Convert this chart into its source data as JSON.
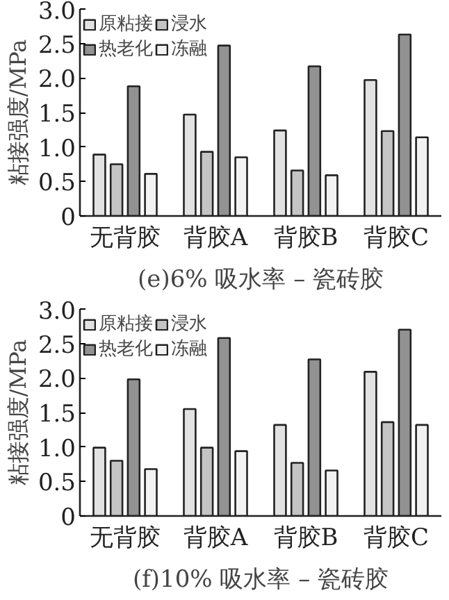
{
  "chart_data": [
    {
      "type": "bar",
      "title": "(e)6% 吸水率 – 瓷砖胶",
      "ylabel": "粘接强度/MPa",
      "categories": [
        "无背胶",
        "背胶A",
        "背胶B",
        "背胶C"
      ],
      "ylim": [
        0,
        3
      ],
      "yticks": [
        0,
        0.5,
        {
          "value": 1,
          "label": "1.0"
        },
        1.5,
        {
          "value": 2,
          "label": "2.0"
        },
        2.5,
        {
          "value": 3,
          "label": "3.0"
        }
      ],
      "legend": "top left",
      "grid": false,
      "series": [
        {
          "name": "原粘接",
          "color": "#e2e2e2",
          "values": [
            0.89,
            1.47,
            1.24,
            1.97
          ]
        },
        {
          "name": "浸水",
          "color": "#c4c4c4",
          "values": [
            0.75,
            0.93,
            0.66,
            1.23
          ]
        },
        {
          "name": "热老化",
          "color": "#929292",
          "values": [
            1.88,
            2.47,
            2.17,
            2.63
          ]
        },
        {
          "name": "冻融",
          "color": "#f2f2f2",
          "values": [
            0.61,
            0.85,
            0.59,
            1.14
          ]
        }
      ]
    },
    {
      "type": "bar",
      "title": "(f)10% 吸水率 – 瓷砖胶",
      "ylabel": "粘接强度/MPa",
      "categories": [
        "无背胶",
        "背胶A",
        "背胶B",
        "背胶C"
      ],
      "ylim": [
        0,
        3
      ],
      "yticks": [
        0,
        0.5,
        {
          "value": 1,
          "label": "1.0"
        },
        1.5,
        {
          "value": 2,
          "label": "2.0"
        },
        2.5,
        {
          "value": 3,
          "label": "3.0"
        }
      ],
      "legend": "top left",
      "grid": false,
      "series": [
        {
          "name": "原粘接",
          "color": "#e2e2e2",
          "values": [
            0.99,
            1.55,
            1.32,
            2.09
          ]
        },
        {
          "name": "浸水",
          "color": "#c4c4c4",
          "values": [
            0.8,
            0.99,
            0.77,
            1.36
          ]
        },
        {
          "name": "热老化",
          "color": "#929292",
          "values": [
            1.98,
            2.58,
            2.27,
            2.7
          ]
        },
        {
          "name": "冻融",
          "color": "#f2f2f2",
          "values": [
            0.68,
            0.94,
            0.66,
            1.32
          ]
        }
      ]
    }
  ]
}
